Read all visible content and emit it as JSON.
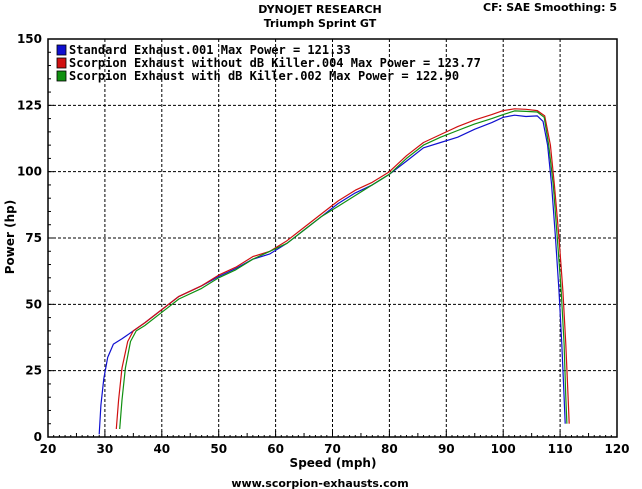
{
  "header": {
    "title": "DYNOJET RESEARCH",
    "subtitle": "Triumph Sprint GT",
    "corner": "CF: SAE  Smoothing: 5"
  },
  "footer": {
    "url": "www.scorpion-exhausts.com"
  },
  "chart_data": {
    "type": "line",
    "xlabel": "Speed (mph)",
    "ylabel": "Power (hp)",
    "xlim": [
      20,
      120
    ],
    "ylim": [
      0,
      150
    ],
    "x_ticks": [
      20,
      30,
      40,
      50,
      60,
      70,
      80,
      90,
      100,
      110,
      120
    ],
    "y_ticks": [
      0,
      25,
      50,
      75,
      100,
      125,
      150
    ],
    "grid": true,
    "legend_position": "top-left",
    "series": [
      {
        "name": "Standard Exhaust.001 Max Power = 121.33",
        "color": "#1010d0",
        "points": [
          [
            29.0,
            1
          ],
          [
            29.3,
            12
          ],
          [
            29.8,
            22
          ],
          [
            30.5,
            30
          ],
          [
            31.5,
            35
          ],
          [
            33.0,
            37
          ],
          [
            35.0,
            40
          ],
          [
            37.0,
            43
          ],
          [
            40.0,
            48
          ],
          [
            43.0,
            53
          ],
          [
            47.0,
            57
          ],
          [
            50.0,
            60.5
          ],
          [
            53.0,
            63.5
          ],
          [
            56.0,
            67
          ],
          [
            59.0,
            69
          ],
          [
            62.0,
            73
          ],
          [
            65.0,
            78
          ],
          [
            68.0,
            83
          ],
          [
            71.0,
            88
          ],
          [
            74.0,
            92
          ],
          [
            77.0,
            95
          ],
          [
            80.0,
            99
          ],
          [
            83.0,
            104
          ],
          [
            86.0,
            109
          ],
          [
            89.0,
            111
          ],
          [
            92.0,
            113
          ],
          [
            95.0,
            116
          ],
          [
            98.0,
            118.5
          ],
          [
            100.0,
            120.5
          ],
          [
            102.0,
            121.3
          ],
          [
            104.0,
            120.8
          ],
          [
            106.0,
            121
          ],
          [
            107.0,
            119
          ],
          [
            107.8,
            110
          ],
          [
            108.5,
            95
          ],
          [
            109.2,
            75
          ],
          [
            109.8,
            55
          ],
          [
            110.3,
            35
          ],
          [
            110.7,
            15
          ],
          [
            110.9,
            5
          ]
        ]
      },
      {
        "name": "Scorpion Exhaust without dB Killer.004 Max Power = 123.77",
        "color": "#d01010",
        "points": [
          [
            32.0,
            3
          ],
          [
            32.4,
            14
          ],
          [
            33.0,
            26
          ],
          [
            34.0,
            36
          ],
          [
            35.0,
            40
          ],
          [
            37.0,
            43
          ],
          [
            40.0,
            48
          ],
          [
            43.0,
            53
          ],
          [
            47.0,
            57
          ],
          [
            50.0,
            61
          ],
          [
            53.0,
            64
          ],
          [
            56.0,
            68
          ],
          [
            59.0,
            70
          ],
          [
            62.0,
            74
          ],
          [
            65.0,
            79
          ],
          [
            68.0,
            84
          ],
          [
            71.0,
            89
          ],
          [
            74.0,
            93
          ],
          [
            77.0,
            96
          ],
          [
            80.0,
            100
          ],
          [
            83.0,
            106
          ],
          [
            86.0,
            111
          ],
          [
            89.0,
            114
          ],
          [
            92.0,
            117
          ],
          [
            95.0,
            119.5
          ],
          [
            98.0,
            121.5
          ],
          [
            100.0,
            123
          ],
          [
            102.0,
            123.7
          ],
          [
            104.0,
            123.5
          ],
          [
            106.0,
            123
          ],
          [
            107.3,
            121
          ],
          [
            108.3,
            110
          ],
          [
            109.0,
            95
          ],
          [
            109.8,
            75
          ],
          [
            110.5,
            55
          ],
          [
            111.0,
            35
          ],
          [
            111.4,
            15
          ],
          [
            111.6,
            5
          ]
        ]
      },
      {
        "name": "Scorpion Exhaust with dB Killer.002 Max Power = 122.90",
        "color": "#109010",
        "points": [
          [
            32.6,
            3
          ],
          [
            33.0,
            14
          ],
          [
            33.6,
            26
          ],
          [
            34.5,
            36
          ],
          [
            35.5,
            40
          ],
          [
            37.0,
            42
          ],
          [
            40.0,
            47
          ],
          [
            43.0,
            52
          ],
          [
            47.0,
            56
          ],
          [
            50.0,
            60
          ],
          [
            53.0,
            63
          ],
          [
            56.0,
            67
          ],
          [
            59.0,
            70
          ],
          [
            62.0,
            73
          ],
          [
            65.0,
            78
          ],
          [
            68.0,
            83
          ],
          [
            71.0,
            87
          ],
          [
            74.0,
            91
          ],
          [
            77.0,
            95
          ],
          [
            80.0,
            99
          ],
          [
            83.0,
            105
          ],
          [
            86.0,
            110
          ],
          [
            89.0,
            113
          ],
          [
            92.0,
            115.5
          ],
          [
            95.0,
            118
          ],
          [
            98.0,
            120
          ],
          [
            100.0,
            121.5
          ],
          [
            102.0,
            122.9
          ],
          [
            104.0,
            122.7
          ],
          [
            106.0,
            122.5
          ],
          [
            107.2,
            120.5
          ],
          [
            108.0,
            110
          ],
          [
            108.8,
            95
          ],
          [
            109.5,
            75
          ],
          [
            110.2,
            55
          ],
          [
            110.7,
            35
          ],
          [
            111.0,
            15
          ],
          [
            111.2,
            5
          ]
        ]
      }
    ]
  }
}
